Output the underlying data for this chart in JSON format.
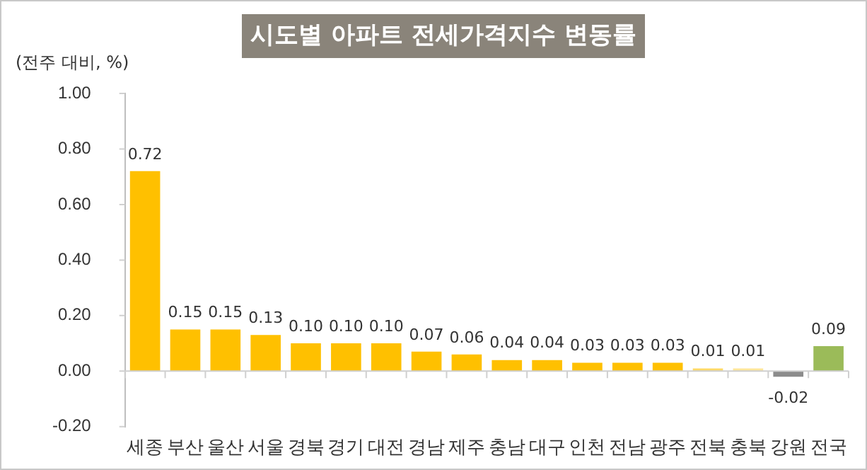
{
  "chart_data": {
    "type": "bar",
    "title": "시도별 아파트 전세가격지수 변동률",
    "ylabel": "(전주 대비, %)",
    "categories": [
      "세종",
      "부산",
      "울산",
      "서울",
      "경북",
      "경기",
      "대전",
      "경남",
      "제주",
      "충남",
      "대구",
      "인천",
      "전남",
      "광주",
      "전북",
      "충북",
      "강원",
      "전국"
    ],
    "values": [
      0.72,
      0.15,
      0.15,
      0.13,
      0.1,
      0.1,
      0.1,
      0.07,
      0.06,
      0.04,
      0.04,
      0.03,
      0.03,
      0.03,
      0.01,
      0.01,
      -0.02,
      0.09
    ],
    "value_labels": [
      "0.72",
      "0.15",
      "0.15",
      "0.13",
      "0.10",
      "0.10",
      "0.10",
      "0.07",
      "0.06",
      "0.04",
      "0.04",
      "0.03",
      "0.03",
      "0.03",
      "0.01",
      "0.01",
      "-0.02",
      "0.09"
    ],
    "colors": [
      "#ffc000",
      "#ffc000",
      "#ffc000",
      "#ffc000",
      "#ffc000",
      "#ffc000",
      "#ffc000",
      "#ffc000",
      "#ffc000",
      "#ffc000",
      "#ffc000",
      "#ffc000",
      "#ffc000",
      "#ffc000",
      "#ffd966",
      "#ffe699",
      "#8c8c8c",
      "#9bbb59"
    ],
    "ylim": [
      -0.2,
      1.0
    ],
    "yticks": [
      {
        "value": -0.2,
        "label": "-0.20"
      },
      {
        "value": 0,
        "label": "0.00"
      },
      {
        "value": 0.2,
        "label": "0.20"
      },
      {
        "value": 0.4,
        "label": "0.40"
      },
      {
        "value": 0.6,
        "label": "0.60"
      },
      {
        "value": 0.8,
        "label": "0.80"
      },
      {
        "value": 1.0,
        "label": "1.00"
      }
    ],
    "legend": false
  }
}
